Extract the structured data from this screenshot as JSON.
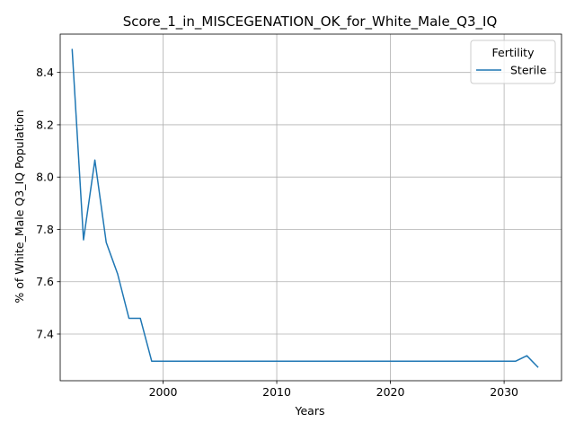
{
  "chart_data": {
    "type": "line",
    "title": "Score_1_in_MISCEGENATION_OK_for_White_Male_Q3_IQ",
    "xlabel": "Years",
    "ylabel": "% of White_Male Q3_IQ Population",
    "xlim": [
      1990.95,
      2035.05
    ],
    "ylim": [
      7.2215,
      8.5465
    ],
    "xticks": [
      1990,
      2000,
      2010,
      2020,
      2030
    ],
    "xtick_labels": [
      "1990",
      "2000",
      "2010",
      "2020",
      "2030"
    ],
    "yticks": [
      7.4,
      7.6,
      7.8,
      8.0,
      8.2,
      8.4
    ],
    "ytick_labels": [
      "7.4",
      "7.6",
      "7.8",
      "8.0",
      "8.2",
      "8.4"
    ],
    "grid": true,
    "legend": {
      "title": "Fertility",
      "position": "top-right"
    },
    "series": [
      {
        "name": "Sterile",
        "color": "#1f77b4",
        "x": [
          1992,
          1993,
          1994,
          1995,
          1996,
          1997,
          1998,
          1999,
          2000,
          2001,
          2002,
          2003,
          2004,
          2005,
          2006,
          2007,
          2008,
          2009,
          2010,
          2011,
          2012,
          2013,
          2014,
          2015,
          2016,
          2017,
          2018,
          2019,
          2020,
          2021,
          2022,
          2023,
          2024,
          2025,
          2026,
          2027,
          2028,
          2029,
          2030,
          2031,
          2032,
          2033
        ],
        "y": [
          8.49,
          7.76,
          8.065,
          7.75,
          7.63,
          7.46,
          7.46,
          7.296,
          7.296,
          7.296,
          7.296,
          7.296,
          7.296,
          7.296,
          7.296,
          7.296,
          7.296,
          7.296,
          7.296,
          7.296,
          7.296,
          7.296,
          7.296,
          7.296,
          7.296,
          7.296,
          7.296,
          7.296,
          7.296,
          7.296,
          7.296,
          7.296,
          7.296,
          7.296,
          7.296,
          7.296,
          7.296,
          7.296,
          7.296,
          7.296,
          7.317,
          7.272
        ]
      }
    ]
  }
}
